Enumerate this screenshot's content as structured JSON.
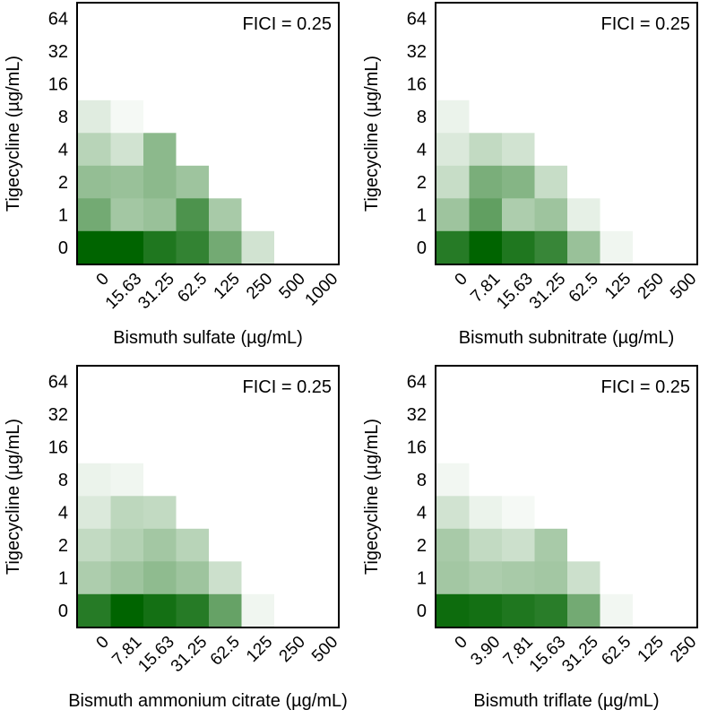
{
  "chart_data": [
    {
      "type": "heatmap",
      "title": "",
      "fici_label": "FICI = 0.25",
      "xlabel": "Bismuth sulfate (µg/mL)",
      "ylabel": "Tigecycline (µg/mL)",
      "x_categories": [
        "0",
        "15.63",
        "31.25",
        "62.5",
        "125",
        "250",
        "500",
        "1000"
      ],
      "y_categories": [
        "0",
        "1",
        "2",
        "4",
        "8",
        "16",
        "32",
        "64"
      ],
      "color": "#006400",
      "values": [
        [
          1.0,
          1.0,
          0.88,
          0.8,
          0.55,
          0.18,
          0.0,
          0.0
        ],
        [
          0.55,
          0.36,
          0.4,
          0.7,
          0.34,
          0.0,
          0.0,
          0.0
        ],
        [
          0.42,
          0.4,
          0.45,
          0.38,
          0.0,
          0.0,
          0.0,
          0.0
        ],
        [
          0.28,
          0.18,
          0.45,
          0.0,
          0.0,
          0.0,
          0.0,
          0.0
        ],
        [
          0.12,
          0.04,
          0.0,
          0.0,
          0.0,
          0.0,
          0.0,
          0.0
        ],
        [
          0.0,
          0.0,
          0.0,
          0.0,
          0.0,
          0.0,
          0.0,
          0.0
        ],
        [
          0.0,
          0.0,
          0.0,
          0.0,
          0.0,
          0.0,
          0.0,
          0.0
        ],
        [
          0.0,
          0.0,
          0.0,
          0.0,
          0.0,
          0.0,
          0.0,
          0.0
        ]
      ]
    },
    {
      "type": "heatmap",
      "title": "",
      "fici_label": "FICI = 0.25",
      "xlabel": "Bismuth subnitrate (µg/mL)",
      "ylabel": "Tigecycline (µg/mL)",
      "x_categories": [
        "0",
        "7.81",
        "15.63",
        "31.25",
        "62.5",
        "125",
        "250",
        "500"
      ],
      "y_categories": [
        "0",
        "1",
        "2",
        "4",
        "8",
        "16",
        "32",
        "64"
      ],
      "color": "#006400",
      "values": [
        [
          0.85,
          1.0,
          0.88,
          0.78,
          0.4,
          0.06,
          0.0,
          0.0
        ],
        [
          0.38,
          0.62,
          0.32,
          0.38,
          0.1,
          0.0,
          0.0,
          0.0
        ],
        [
          0.22,
          0.52,
          0.48,
          0.22,
          0.0,
          0.0,
          0.0,
          0.0
        ],
        [
          0.14,
          0.24,
          0.18,
          0.0,
          0.0,
          0.0,
          0.0,
          0.0
        ],
        [
          0.08,
          0.0,
          0.0,
          0.0,
          0.0,
          0.0,
          0.0,
          0.0
        ],
        [
          0.0,
          0.0,
          0.0,
          0.0,
          0.0,
          0.0,
          0.0,
          0.0
        ],
        [
          0.0,
          0.0,
          0.0,
          0.0,
          0.0,
          0.0,
          0.0,
          0.0
        ],
        [
          0.0,
          0.0,
          0.0,
          0.0,
          0.0,
          0.0,
          0.0,
          0.0
        ]
      ]
    },
    {
      "type": "heatmap",
      "title": "",
      "fici_label": "FICI = 0.25",
      "xlabel": "Bismuth ammonium citrate (µg/mL)",
      "ylabel": "Tigecycline (µg/mL)",
      "x_categories": [
        "0",
        "7.81",
        "15.63",
        "31.25",
        "62.5",
        "125",
        "250",
        "500"
      ],
      "y_categories": [
        "0",
        "1",
        "2",
        "4",
        "8",
        "16",
        "32",
        "64"
      ],
      "color": "#006400",
      "values": [
        [
          0.85,
          1.0,
          0.92,
          0.85,
          0.6,
          0.06,
          0.0,
          0.0
        ],
        [
          0.32,
          0.38,
          0.44,
          0.38,
          0.2,
          0.0,
          0.0,
          0.0
        ],
        [
          0.24,
          0.3,
          0.36,
          0.28,
          0.0,
          0.0,
          0.0,
          0.0
        ],
        [
          0.14,
          0.26,
          0.24,
          0.0,
          0.0,
          0.0,
          0.0,
          0.0
        ],
        [
          0.08,
          0.06,
          0.0,
          0.0,
          0.0,
          0.0,
          0.0,
          0.0
        ],
        [
          0.0,
          0.0,
          0.0,
          0.0,
          0.0,
          0.0,
          0.0,
          0.0
        ],
        [
          0.0,
          0.0,
          0.0,
          0.0,
          0.0,
          0.0,
          0.0,
          0.0
        ],
        [
          0.0,
          0.0,
          0.0,
          0.0,
          0.0,
          0.0,
          0.0,
          0.0
        ]
      ]
    },
    {
      "type": "heatmap",
      "title": "",
      "fici_label": "FICI = 0.25",
      "xlabel": "Bismuth triflate (µg/mL)",
      "ylabel": "Tigecycline (µg/mL)",
      "x_categories": [
        "0",
        "3.90",
        "7.81",
        "15.63",
        "31.25",
        "62.5",
        "125",
        "250"
      ],
      "y_categories": [
        "0",
        "1",
        "2",
        "4",
        "8",
        "16",
        "32",
        "64"
      ],
      "color": "#006400",
      "values": [
        [
          0.95,
          0.92,
          0.88,
          0.84,
          0.55,
          0.05,
          0.0,
          0.0
        ],
        [
          0.36,
          0.32,
          0.34,
          0.36,
          0.2,
          0.0,
          0.0,
          0.0
        ],
        [
          0.34,
          0.24,
          0.2,
          0.34,
          0.0,
          0.0,
          0.0,
          0.0
        ],
        [
          0.18,
          0.08,
          0.04,
          0.0,
          0.0,
          0.0,
          0.0,
          0.0
        ],
        [
          0.05,
          0.0,
          0.0,
          0.0,
          0.0,
          0.0,
          0.0,
          0.0
        ],
        [
          0.0,
          0.0,
          0.0,
          0.0,
          0.0,
          0.0,
          0.0,
          0.0
        ],
        [
          0.0,
          0.0,
          0.0,
          0.0,
          0.0,
          0.0,
          0.0,
          0.0
        ],
        [
          0.0,
          0.0,
          0.0,
          0.0,
          0.0,
          0.0,
          0.0,
          0.0
        ]
      ]
    }
  ]
}
